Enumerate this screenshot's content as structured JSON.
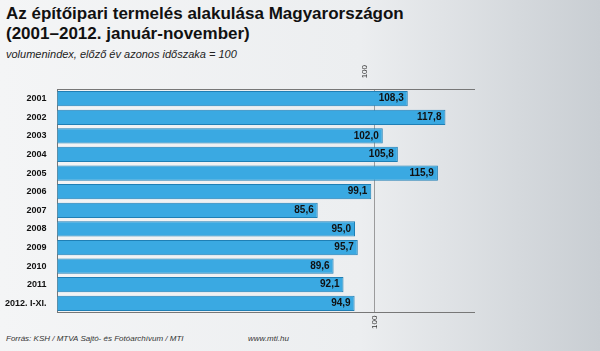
{
  "chart_data": {
    "type": "bar",
    "orientation": "horizontal",
    "title": "Az építőipari termelés alakulása Magyarországon\n(2001–2012. január-november)",
    "subtitle": "volumenindex, előző év azonos időszaka = 100",
    "categories": [
      "2001",
      "2002",
      "2003",
      "2004",
      "2005",
      "2006",
      "2007",
      "2008",
      "2009",
      "2010",
      "2011",
      "2012. I-XI."
    ],
    "values": [
      108.3,
      117.8,
      102.0,
      105.8,
      115.9,
      99.1,
      85.6,
      95.0,
      95.7,
      89.6,
      92.1,
      94.9
    ],
    "value_labels": [
      "108,3",
      "117,8",
      "102,0",
      "105,8",
      "115,9",
      "99,1",
      "85,6",
      "95,0",
      "95,7",
      "89,6",
      "92,1",
      "94,9"
    ],
    "data_labels": true,
    "color": "#3aa9e2",
    "xlim": [
      20,
      125
    ],
    "xticks": [
      100
    ],
    "grid": true,
    "annotations": [
      "Forrás: KSH / MTVA Sajtó- és Fotóarchívum / MTI",
      "www.mti.hu"
    ]
  }
}
